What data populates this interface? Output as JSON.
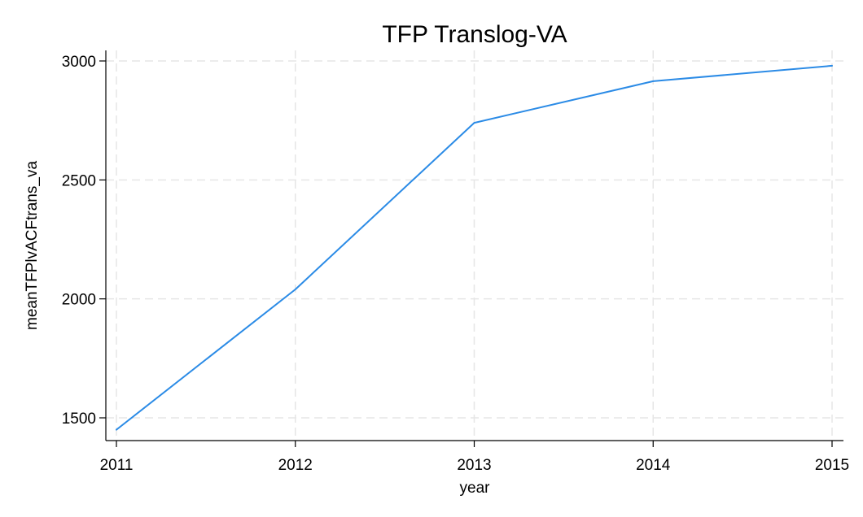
{
  "chart_data": {
    "type": "line",
    "title": "TFP Translog-VA",
    "xlabel": "year",
    "ylabel": "meanTFPlvACFtrans_va",
    "x": [
      2011,
      2012,
      2013,
      2014,
      2015
    ],
    "series": [
      {
        "values": [
          1450,
          2040,
          2740,
          2915,
          2980
        ],
        "color": "#2b8be6"
      }
    ],
    "xticks": [
      "2011",
      "2012",
      "2013",
      "2014",
      "2015"
    ],
    "yticks": [
      "1500",
      "2000",
      "2500",
      "3000"
    ],
    "xlim": [
      2011,
      2015
    ],
    "ylim": [
      1450,
      3000
    ],
    "grid": true,
    "legend": "none"
  }
}
